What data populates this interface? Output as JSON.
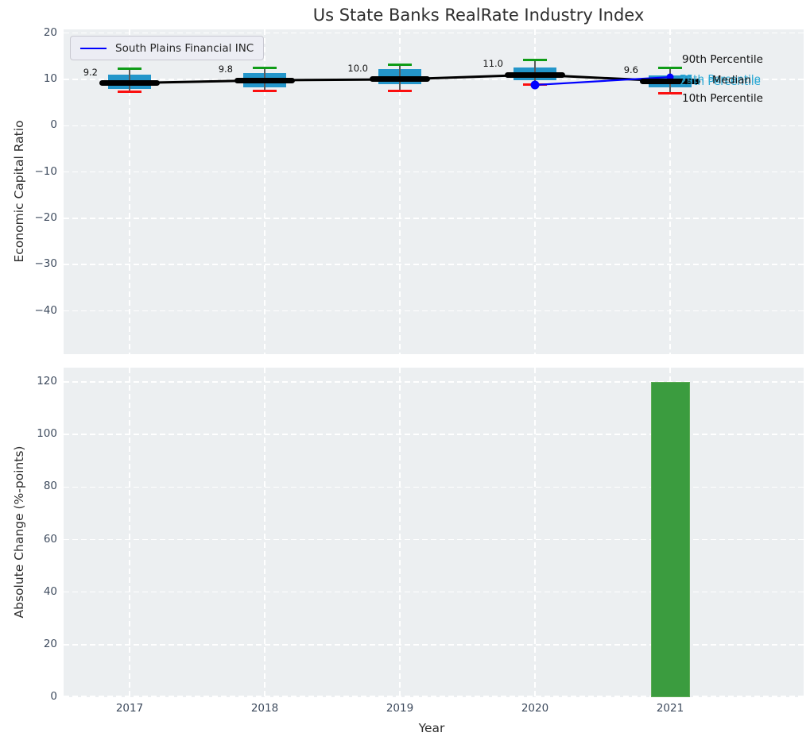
{
  "title": "Us State Banks RealRate Industry Index",
  "legend": {
    "series_label": "South Plains Financial INC"
  },
  "axes": {
    "top_ylabel": "Economic Capital Ratio",
    "bottom_ylabel": "Absolute Change (%-points)",
    "xlabel": "Year"
  },
  "annotations": {
    "p90": "90th Percentile",
    "p75": "75th Percentile",
    "p25": "25th Percentile",
    "median": "Median",
    "p10": "10th Percentile"
  },
  "colors": {
    "box_fill": "#2496ca",
    "whisker_line": "#5a5a5a",
    "cap_top_green": "#0f9c17",
    "cap_bottom_red": "#fb0f0f",
    "median_line": "#000000",
    "company_line": "#0000ff",
    "bar_fill": "#3b9c3f",
    "bar_edge": "#5cab55",
    "plot_bg": "#eceff1",
    "grid": "#ffffff",
    "tick_text": "#3d4a5d",
    "cyan_text": "#29a8d4"
  },
  "chart_data": [
    {
      "type": "boxplot",
      "title": "Us State Banks RealRate Industry Index",
      "ylabel": "Economic Capital Ratio",
      "categories": [
        "2017",
        "2018",
        "2019",
        "2020",
        "2021"
      ],
      "yticks": [
        20,
        10,
        0,
        -10,
        -20,
        -30,
        -40
      ],
      "ytick_labels": [
        "20",
        "10",
        "0",
        "−10",
        "−20",
        "−30",
        "−40"
      ],
      "ylim": [
        -49.5,
        20.8
      ],
      "grid": true,
      "legend_position": "upper left",
      "boxes": [
        {
          "year": "2017",
          "p10": 7.4,
          "p25": 8.0,
          "median": 9.2,
          "p75": 11.1,
          "p90": 12.3
        },
        {
          "year": "2018",
          "p10": 7.5,
          "p25": 8.3,
          "median": 9.8,
          "p75": 11.4,
          "p90": 12.4
        },
        {
          "year": "2019",
          "p10": 7.5,
          "p25": 8.9,
          "median": 10.0,
          "p75": 12.3,
          "p90": 13.2
        },
        {
          "year": "2020",
          "p10": 8.8,
          "p25": 9.8,
          "median": 11.0,
          "p75": 12.5,
          "p90": 14.2
        },
        {
          "year": "2021",
          "p10": 7.0,
          "p25": 8.3,
          "median": 9.6,
          "p75": 10.9,
          "p90": 12.4
        }
      ],
      "median_labels": [
        "9.2",
        "9.8",
        "10.0",
        "11.0",
        "9.6"
      ],
      "series": [
        {
          "name": "South Plains Financial INC",
          "type": "line",
          "x": [
            "2020",
            "2021"
          ],
          "y": [
            8.8,
            10.5
          ]
        }
      ]
    },
    {
      "type": "bar",
      "ylabel": "Absolute Change (%-points)",
      "xlabel": "Year",
      "categories": [
        "2017",
        "2018",
        "2019",
        "2020",
        "2021"
      ],
      "values": [
        0,
        0,
        0,
        0,
        120
      ],
      "yticks": [
        0,
        20,
        40,
        60,
        80,
        100,
        120
      ],
      "ytick_labels": [
        "0",
        "20",
        "40",
        "60",
        "80",
        "100",
        "120"
      ],
      "ylim": [
        -3,
        125
      ],
      "grid": true
    }
  ]
}
